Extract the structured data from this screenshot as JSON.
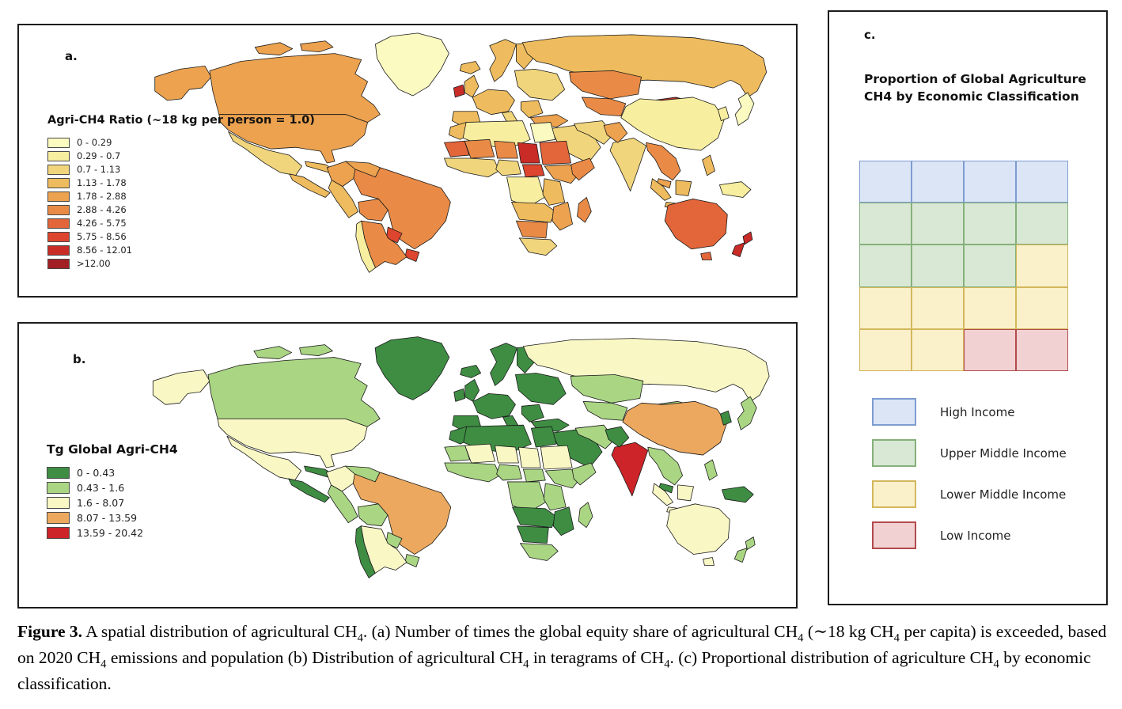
{
  "panel_a": {
    "label": "a.",
    "legend_title": "Agri-CH4 Ratio (~18 kg per person = 1.0)",
    "classes": [
      {
        "range": "0 - 0.29",
        "color": "#FBFAC0"
      },
      {
        "range": "0.29 - 0.7",
        "color": "#F8EE9F"
      },
      {
        "range": "0.7 - 1.13",
        "color": "#F0D57C"
      },
      {
        "range": "1.13 - 1.78",
        "color": "#EEBC5E"
      },
      {
        "range": "1.78 - 2.88",
        "color": "#ECA24F"
      },
      {
        "range": "2.88 - 4.26",
        "color": "#E98B46"
      },
      {
        "range": "4.26 - 5.75",
        "color": "#E3653A"
      },
      {
        "range": "5.75 - 8.56",
        "color": "#DD452F"
      },
      {
        "range": "8.56 - 12.01",
        "color": "#C92B27"
      },
      {
        "range": ">12.00",
        "color": "#A22025"
      }
    ],
    "regions": {
      "greenland": 1,
      "alaska": 5,
      "canada": 5,
      "usa": 5,
      "mexico": 3,
      "central-america": 4,
      "cuba": 4,
      "colombia": 5,
      "venezuela": 5,
      "guyanas": 2,
      "peru": 4,
      "bolivia": 6,
      "brazil": 6,
      "paraguay": 8,
      "uruguay": 8,
      "argentina": 6,
      "chile": 2,
      "iceland": 4,
      "uk": 4,
      "ireland": 9,
      "scandinavia": 4,
      "west-europe": 4,
      "iberia": 4,
      "italy": 3,
      "east-europe": 3,
      "balkans": 4,
      "russia": 4,
      "turkey": 5,
      "middle-east": 3,
      "iran": 3,
      "kazakhstan": 6,
      "central-asia": 6,
      "mongolia": 9,
      "china": 2,
      "korea": 2,
      "japan": 1,
      "india": 3,
      "pakistan": 5,
      "se-asia": 6,
      "malaysia": 5,
      "philippines": 4,
      "indonesia": 4,
      "new-guinea": 2,
      "australia": 7,
      "new-zealand": 9,
      "morocco": 4,
      "algeria-libya": 2,
      "egypt": 1,
      "mauritania": 7,
      "mali": 6,
      "niger": 6,
      "chad": 9,
      "sudan": 7,
      "west-africa": 3,
      "nigeria": 3,
      "car": 8,
      "ethiopia": 5,
      "somalia": 6,
      "drc": 2,
      "east-africa": 4,
      "angola-zambia": 4,
      "namibia-botswana": 6,
      "south-africa": 3,
      "mozambique": 5,
      "madagascar": 6
    }
  },
  "panel_b": {
    "label": "b.",
    "legend_title": "Tg Global Agri-CH4",
    "classes": [
      {
        "range": "0 - 0.43",
        "color": "#3E8D43"
      },
      {
        "range": "0.43 - 1.6",
        "color": "#AAD684"
      },
      {
        "range": "1.6 - 8.07",
        "color": "#F9F8C5"
      },
      {
        "range": "8.07 - 13.59",
        "color": "#EBA85E"
      },
      {
        "range": "13.59 - 20.42",
        "color": "#CC2428"
      }
    ],
    "regions": {
      "greenland": 1,
      "alaska": 3,
      "canada": 2,
      "usa": 3,
      "mexico": 3,
      "central-america": 1,
      "cuba": 1,
      "colombia": 3,
      "venezuela": 2,
      "guyanas": 2,
      "peru": 2,
      "bolivia": 2,
      "brazil": 4,
      "paraguay": 2,
      "uruguay": 2,
      "argentina": 3,
      "chile": 1,
      "iceland": 1,
      "uk": 1,
      "ireland": 1,
      "scandinavia": 1,
      "west-europe": 1,
      "iberia": 1,
      "italy": 1,
      "east-europe": 1,
      "balkans": 1,
      "russia": 3,
      "turkey": 1,
      "middle-east": 1,
      "iran": 2,
      "kazakhstan": 2,
      "central-asia": 2,
      "mongolia": 2,
      "china": 4,
      "korea": 1,
      "japan": 2,
      "india": 5,
      "pakistan": 1,
      "se-asia": 2,
      "malaysia": 1,
      "philippines": 2,
      "indonesia": 3,
      "new-guinea": 1,
      "australia": 3,
      "new-zealand": 2,
      "morocco": 1,
      "algeria-libya": 1,
      "egypt": 1,
      "mauritania": 2,
      "mali": 3,
      "niger": 3,
      "chad": 3,
      "sudan": 3,
      "west-africa": 2,
      "nigeria": 2,
      "car": 2,
      "ethiopia": 2,
      "somalia": 2,
      "drc": 2,
      "east-africa": 2,
      "angola-zambia": 1,
      "namibia-botswana": 1,
      "south-africa": 2,
      "mozambique": 1,
      "madagascar": 2
    }
  },
  "panel_c": {
    "label": "c.",
    "title_lines": [
      "Proportion of Global Agriculture",
      "CH4 by Economic Classification"
    ],
    "grid": {
      "rows": 5,
      "cols": 4,
      "cell_share_percent": 5,
      "cells": [
        [
          "high",
          "high",
          "high",
          "high"
        ],
        [
          "upper",
          "upper",
          "upper",
          "upper"
        ],
        [
          "upper",
          "upper",
          "upper",
          "lower"
        ],
        [
          "lower",
          "lower",
          "lower",
          "lower"
        ],
        [
          "lower",
          "lower",
          "low",
          "low"
        ]
      ]
    },
    "categories": [
      {
        "id": "high",
        "label": "High Income",
        "fill": "#DBE5F6",
        "border": "#7E9CD0"
      },
      {
        "id": "upper",
        "label": "Upper Middle Income",
        "fill": "#D9E8D4",
        "border": "#85B07B"
      },
      {
        "id": "lower",
        "label": "Lower Middle Income",
        "fill": "#FAF1CB",
        "border": "#D3B75C"
      },
      {
        "id": "low",
        "label": "Low Income",
        "fill": "#F2D1D2",
        "border": "#B14B4D"
      }
    ]
  },
  "caption": {
    "label": "Figure 3.",
    "text": " A spatial distribution of agricultural CH4. (a) Number of times the global equity share of agricultural CH4 (∼18 kg CH4 per capita) is exceeded, based on 2020 CH4 emissions and population (b) Distribution of agricultural CH4 in teragrams of CH4. (c) Proportional distribution of agriculture CH4 by economic classification."
  }
}
